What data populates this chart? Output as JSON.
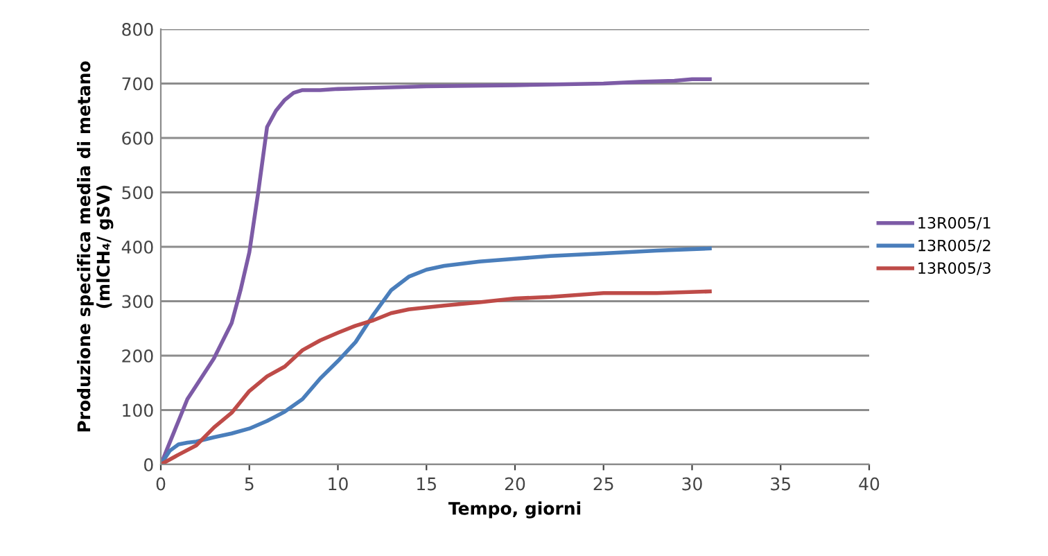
{
  "chart_data": {
    "type": "line",
    "xlabel": "Tempo, giorni",
    "ylabel": "Produzione specifica media di metano\n(mlCH₄/ gSV)",
    "xlim": [
      0,
      40
    ],
    "xticks": [
      0,
      5,
      10,
      15,
      20,
      25,
      30,
      35,
      40
    ],
    "ylim": [
      0,
      800
    ],
    "yticks": [
      0,
      100,
      200,
      300,
      400,
      500,
      600,
      700,
      800
    ],
    "grid": "y",
    "legend": "right",
    "marker": "none",
    "line_style": "solid",
    "series": [
      {
        "name": "13R005/1",
        "color": "#7d5ba6",
        "x": [
          0,
          0.5,
          1,
          1.5,
          2,
          3,
          4,
          4.5,
          5,
          5.5,
          6,
          6.5,
          7,
          7.5,
          8,
          9,
          10,
          12,
          15,
          20,
          25,
          27,
          29,
          30,
          31
        ],
        "values": [
          0,
          40,
          80,
          120,
          145,
          195,
          260,
          320,
          390,
          500,
          620,
          650,
          670,
          683,
          688,
          688,
          690,
          692,
          695,
          697,
          700,
          703,
          705,
          708,
          708
        ]
      },
      {
        "name": "13R005/2",
        "color": "#4a7ebb",
        "x": [
          0,
          0.5,
          1,
          1.5,
          2,
          3,
          4,
          5,
          6,
          7,
          8,
          9,
          10,
          11,
          12,
          13,
          14,
          15,
          16,
          18,
          20,
          22,
          25,
          28,
          31
        ],
        "values": [
          0,
          25,
          37,
          40,
          42,
          50,
          57,
          66,
          80,
          97,
          120,
          158,
          190,
          225,
          275,
          320,
          345,
          358,
          365,
          373,
          378,
          383,
          388,
          393,
          397
        ]
      },
      {
        "name": "13R005/3",
        "color": "#be4b48",
        "x": [
          0,
          1,
          2,
          3,
          4,
          5,
          6,
          7,
          8,
          9,
          10,
          11,
          12,
          13,
          14,
          16,
          18,
          20,
          22,
          25,
          28,
          31
        ],
        "values": [
          0,
          18,
          35,
          68,
          95,
          135,
          162,
          180,
          210,
          228,
          242,
          255,
          265,
          278,
          285,
          292,
          298,
          305,
          308,
          315,
          315,
          318
        ]
      }
    ]
  }
}
